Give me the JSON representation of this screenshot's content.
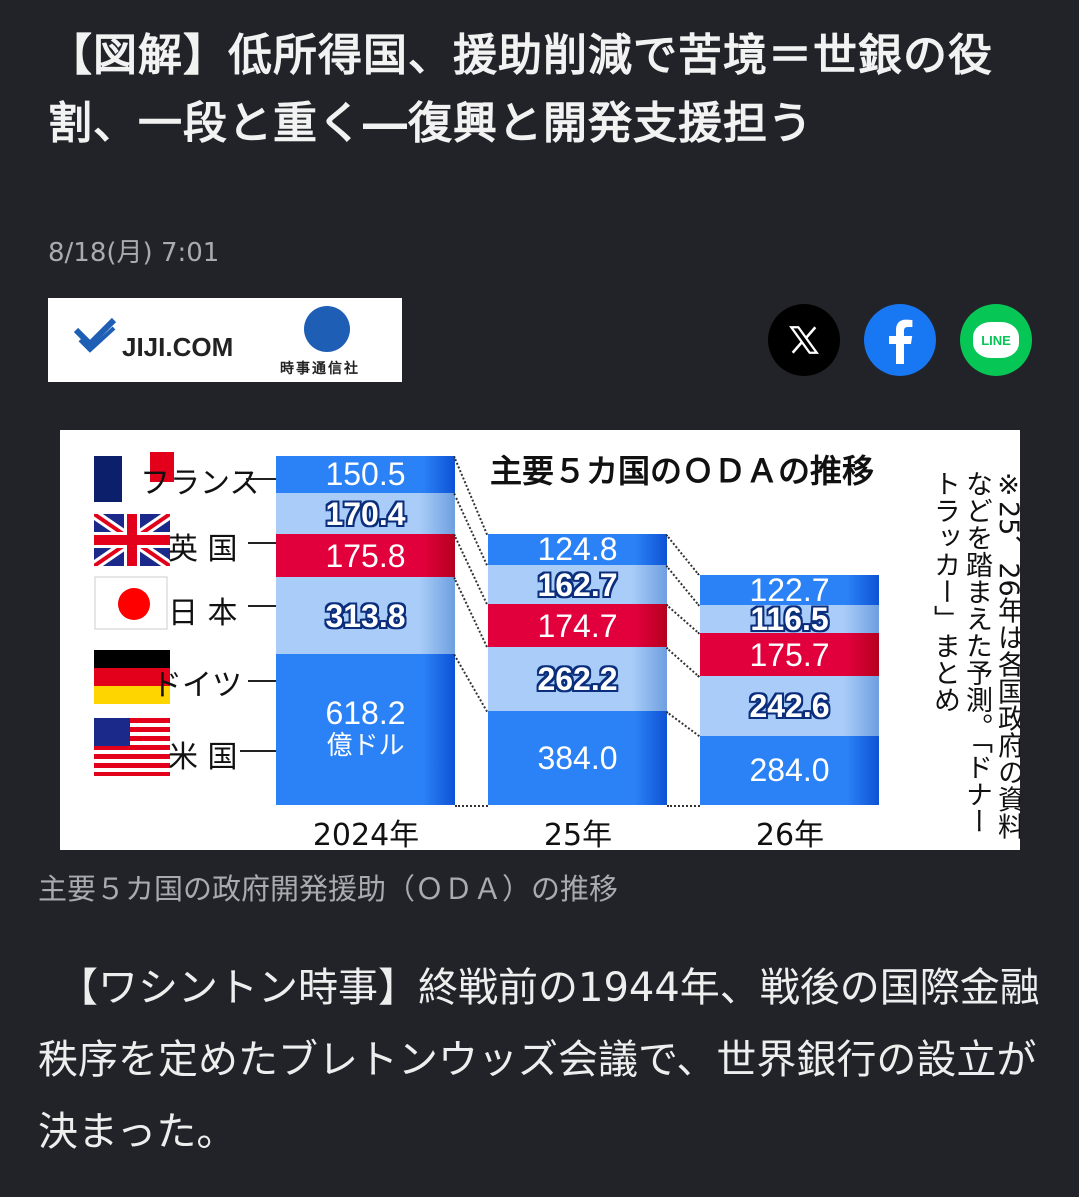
{
  "article": {
    "title": "【図解】低所得国、援助削減で苦境＝世銀の役割、一段と重く―復興と開発支援担う",
    "date": "8/18(月) 7:01",
    "publisher_logo_text": "JIJI.COM",
    "publisher_logo_sub": "時事通信社",
    "share_icons": [
      "x-icon",
      "facebook-icon",
      "line-icon"
    ],
    "line_label": "LINE",
    "caption": "主要５カ国の政府開発援助（ＯＤＡ）の推移",
    "body": "　【ワシントン時事】終戦前の1944年、戦後の国際金融秩序を定めたブレトンウッズ会議で、世界銀行の設立が決まった。"
  },
  "chart_data": {
    "type": "bar",
    "stacked": true,
    "title": "主要５カ国のＯＤＡの推移",
    "unit": "億ドル",
    "note": "※25、26年は各国政府の資料などを踏まえた予測。「ドナートラッカー」まとめ",
    "categories": [
      "2024年",
      "25年",
      "26年"
    ],
    "series": [
      {
        "name": "米国",
        "label": "米 国",
        "values": [
          618.2,
          384.0,
          284.0
        ],
        "color": "#2b82f6"
      },
      {
        "name": "ドイツ",
        "label": "ドイツ",
        "values": [
          313.8,
          262.2,
          242.6
        ],
        "color": "#a9cdf8"
      },
      {
        "name": "日本",
        "label": "日 本",
        "values": [
          175.8,
          174.7,
          175.7
        ],
        "color": "#e2003c"
      },
      {
        "name": "英国",
        "label": "英 国",
        "values": [
          170.4,
          162.7,
          116.5
        ],
        "color": "#a9cdf8"
      },
      {
        "name": "フランス",
        "label": "フランス",
        "values": [
          150.5,
          124.8,
          122.7
        ],
        "color": "#2b82f6"
      }
    ]
  },
  "colors": {
    "background": "#212328",
    "x": "#000000",
    "facebook": "#1877f2",
    "line": "#06c755"
  }
}
